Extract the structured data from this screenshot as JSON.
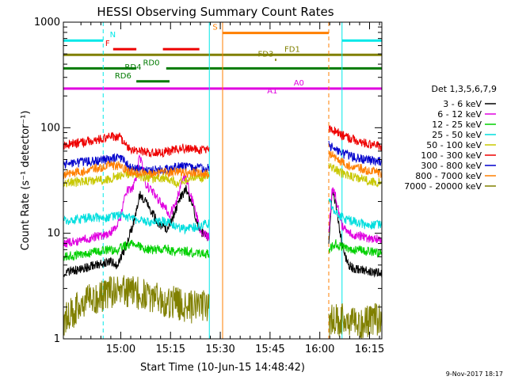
{
  "chart_data": {
    "type": "line",
    "title": "HESSI Observing Summary Count Rates",
    "xlabel": "Start Time (10-Jun-15 14:48:42)",
    "ylabel": "Count Rate (s⁻¹ detector⁻¹)",
    "yscale": "log",
    "ylim": [
      1,
      1000
    ],
    "y_ticks": [
      {
        "v": 1,
        "label": "1"
      },
      {
        "v": 10,
        "label": "10"
      },
      {
        "v": 100,
        "label": "100"
      },
      {
        "v": 1000,
        "label": "1000"
      }
    ],
    "xlim": [
      -6,
      90
    ],
    "x_ticks": [
      {
        "v": 11.3,
        "label": "15:00"
      },
      {
        "v": 26.3,
        "label": "15:15"
      },
      {
        "v": 41.3,
        "label": "15:30"
      },
      {
        "v": 56.3,
        "label": "15:45"
      },
      {
        "v": 71.3,
        "label": "16:00"
      },
      {
        "v": 86.3,
        "label": "16:15"
      }
    ],
    "legend_title": "Det 1,3,5,6,7,9",
    "legend_position": "right",
    "segments": [
      [
        -6,
        38
      ],
      [
        74,
        90
      ]
    ],
    "series": [
      {
        "name": "3 - 6 keV",
        "color": "#000000",
        "day": [
          [
            -6,
            4.2
          ],
          [
            2,
            4.8
          ],
          [
            8,
            5.5
          ],
          [
            10,
            5.0
          ],
          [
            12,
            6.5
          ],
          [
            15,
            12
          ],
          [
            17,
            23
          ],
          [
            19,
            20
          ],
          [
            21,
            15
          ],
          [
            23,
            12
          ],
          [
            25,
            11
          ],
          [
            27,
            14
          ],
          [
            29,
            21
          ],
          [
            31,
            26
          ],
          [
            33,
            18
          ],
          [
            35,
            11
          ],
          [
            36,
            10
          ],
          [
            37,
            9.5
          ],
          [
            38,
            9
          ]
        ],
        "night": [
          [
            74,
            8.5
          ],
          [
            75,
            24
          ],
          [
            76,
            20
          ],
          [
            77,
            12
          ],
          [
            78,
            8
          ],
          [
            79,
            6
          ],
          [
            80,
            5
          ],
          [
            82,
            4.5
          ],
          [
            85,
            4.5
          ],
          [
            88,
            4.3
          ],
          [
            90,
            4.2
          ]
        ]
      },
      {
        "name": "6 - 12 keV",
        "color": "#e000e0",
        "day": [
          [
            -6,
            8
          ],
          [
            2,
            9
          ],
          [
            8,
            10
          ],
          [
            11,
            13
          ],
          [
            13,
            25
          ],
          [
            15,
            27
          ],
          [
            16,
            35
          ],
          [
            17,
            55
          ],
          [
            18,
            40
          ],
          [
            19,
            28
          ],
          [
            21,
            25
          ],
          [
            23,
            20
          ],
          [
            25,
            17
          ],
          [
            26,
            15
          ],
          [
            27,
            17
          ],
          [
            28,
            20
          ],
          [
            29,
            26
          ],
          [
            30,
            32
          ],
          [
            31,
            33
          ],
          [
            32,
            25
          ],
          [
            34,
            16
          ],
          [
            35,
            11
          ],
          [
            36,
            10
          ],
          [
            37,
            9.5
          ],
          [
            38,
            9
          ]
        ],
        "night": [
          [
            74,
            10
          ],
          [
            75,
            26
          ],
          [
            76,
            23
          ],
          [
            77,
            16
          ],
          [
            78,
            12
          ],
          [
            79,
            11
          ],
          [
            80,
            10
          ],
          [
            83,
            9.5
          ],
          [
            86,
            9
          ],
          [
            90,
            8.8
          ]
        ]
      },
      {
        "name": "12 - 25 keV",
        "color": "#00d000",
        "day": [
          [
            -6,
            6
          ],
          [
            2,
            6.5
          ],
          [
            8,
            7
          ],
          [
            10,
            6.8
          ],
          [
            12,
            7.5
          ],
          [
            15,
            8
          ],
          [
            18,
            7.2
          ],
          [
            21,
            7
          ],
          [
            25,
            7.2
          ],
          [
            28,
            6.5
          ],
          [
            31,
            6.8
          ],
          [
            34,
            6.5
          ],
          [
            36,
            6.4
          ],
          [
            38,
            6.5
          ]
        ],
        "night": [
          [
            74,
            7
          ],
          [
            76,
            8
          ],
          [
            78,
            7.5
          ],
          [
            81,
            7
          ],
          [
            85,
            6.8
          ],
          [
            88,
            6.6
          ],
          [
            90,
            6.5
          ]
        ]
      },
      {
        "name": "25 - 50 keV",
        "color": "#00dede",
        "day": [
          [
            -6,
            13
          ],
          [
            2,
            14
          ],
          [
            8,
            14
          ],
          [
            11,
            15
          ],
          [
            14,
            14
          ],
          [
            18,
            13
          ],
          [
            21,
            12.5
          ],
          [
            25,
            13
          ],
          [
            28,
            11.5
          ],
          [
            31,
            11
          ],
          [
            34,
            11.5
          ],
          [
            36,
            12
          ],
          [
            38,
            12.5
          ]
        ],
        "night": [
          [
            74,
            20
          ],
          [
            76,
            16
          ],
          [
            78,
            14
          ],
          [
            81,
            13
          ],
          [
            85,
            12
          ],
          [
            88,
            12
          ],
          [
            90,
            12
          ]
        ]
      },
      {
        "name": "50 - 100 keV",
        "color": "#c8c800",
        "day": [
          [
            -6,
            30
          ],
          [
            2,
            31
          ],
          [
            8,
            33
          ],
          [
            10,
            35
          ],
          [
            12,
            36
          ],
          [
            15,
            37
          ],
          [
            18,
            34
          ],
          [
            21,
            33
          ],
          [
            25,
            34
          ],
          [
            28,
            30
          ],
          [
            31,
            32
          ],
          [
            34,
            33
          ],
          [
            36,
            34
          ],
          [
            38,
            35
          ]
        ],
        "night": [
          [
            74,
            45
          ],
          [
            76,
            40
          ],
          [
            78,
            37
          ],
          [
            81,
            34
          ],
          [
            85,
            32
          ],
          [
            88,
            31
          ],
          [
            90,
            30
          ]
        ]
      },
      {
        "name": "100 - 300 keV",
        "color": "#ee0000",
        "day": [
          [
            -6,
            68
          ],
          [
            2,
            75
          ],
          [
            8,
            82
          ],
          [
            11,
            82
          ],
          [
            14,
            62
          ],
          [
            17,
            60
          ],
          [
            20,
            58
          ],
          [
            23,
            58
          ],
          [
            26,
            60
          ],
          [
            29,
            64
          ],
          [
            32,
            63
          ],
          [
            35,
            62
          ],
          [
            38,
            62
          ]
        ],
        "night": [
          [
            74,
            100
          ],
          [
            76,
            92
          ],
          [
            78,
            85
          ],
          [
            81,
            78
          ],
          [
            85,
            72
          ],
          [
            88,
            68
          ],
          [
            90,
            66
          ]
        ]
      },
      {
        "name": "300 - 800 keV",
        "color": "#0000cc",
        "day": [
          [
            -6,
            45
          ],
          [
            2,
            48
          ],
          [
            8,
            50
          ],
          [
            11,
            52
          ],
          [
            14,
            42
          ],
          [
            17,
            40
          ],
          [
            20,
            39
          ],
          [
            23,
            40
          ],
          [
            26,
            41
          ],
          [
            29,
            43
          ],
          [
            32,
            42
          ],
          [
            35,
            41
          ],
          [
            38,
            41
          ]
        ],
        "night": [
          [
            74,
            68
          ],
          [
            76,
            62
          ],
          [
            78,
            57
          ],
          [
            81,
            53
          ],
          [
            85,
            50
          ],
          [
            88,
            48
          ],
          [
            90,
            47
          ]
        ]
      },
      {
        "name": "800 - 7000 keV",
        "color": "#ff7f00",
        "day": [
          [
            -6,
            36
          ],
          [
            2,
            40
          ],
          [
            8,
            44
          ],
          [
            11,
            44
          ],
          [
            14,
            38
          ],
          [
            17,
            37
          ],
          [
            20,
            36
          ],
          [
            23,
            37
          ],
          [
            26,
            38
          ],
          [
            29,
            38
          ],
          [
            32,
            37
          ],
          [
            35,
            37
          ],
          [
            38,
            36
          ]
        ],
        "night": [
          [
            74,
            58
          ],
          [
            76,
            52
          ],
          [
            78,
            47
          ],
          [
            81,
            43
          ],
          [
            85,
            40
          ],
          [
            88,
            38
          ],
          [
            90,
            37
          ]
        ]
      },
      {
        "name": "7000 - 20000 keV",
        "color": "#808000",
        "day": [
          [
            -6,
            1.5
          ],
          [
            2,
            2.4
          ],
          [
            6,
            2.6
          ],
          [
            10,
            2.8
          ],
          [
            13,
            2.9
          ],
          [
            17,
            2.7
          ],
          [
            20,
            2.5
          ],
          [
            24,
            2.3
          ],
          [
            28,
            2.2
          ],
          [
            32,
            2.0
          ],
          [
            36,
            2.0
          ],
          [
            38,
            2.0
          ]
        ],
        "night": [
          [
            74,
            1.5
          ],
          [
            78,
            1.5
          ],
          [
            82,
            1.4
          ],
          [
            86,
            1.5
          ],
          [
            90,
            1.5
          ]
        ]
      }
    ],
    "bars": [
      {
        "label": "N",
        "color": "#00e8e8",
        "y": 670,
        "segs": [
          [
            -6,
            6
          ],
          [
            78,
            90
          ]
        ],
        "label_x": 8,
        "label_side": "right"
      },
      {
        "label": "F",
        "color": "#ee0000",
        "y": 555,
        "segs": [
          [
            9,
            16
          ],
          [
            24,
            35
          ]
        ],
        "label_x": 8,
        "label_side": "left"
      },
      {
        "label": "S",
        "color": "#ff7f00",
        "y": 790,
        "segs": [
          [
            42,
            74
          ]
        ],
        "label_x": 40.5,
        "label_side": "left"
      },
      {
        "label": "FD1",
        "color": "#808000",
        "y": 490,
        "segs": [
          [
            -6,
            90
          ]
        ],
        "label_x": 63,
        "label_side": "center"
      },
      {
        "label": "FD3",
        "color": "#808000",
        "y": 440,
        "segs": [
          [
            57.8,
            58.2
          ]
        ],
        "label_x": 55,
        "label_side": "center"
      },
      {
        "label": "RD0",
        "color": "#007a00",
        "y": 365,
        "segs": [
          [
            -6,
            16
          ],
          [
            25,
            90
          ]
        ],
        "label_x": 20.5,
        "label_side": "center"
      },
      {
        "label": "RD4",
        "color": "#007a00",
        "y": 330,
        "segs": [],
        "label_x": 15,
        "label_side": "center"
      },
      {
        "label": "RD6",
        "color": "#007a00",
        "y": 275,
        "segs": [
          [
            16,
            26
          ]
        ],
        "label_x": 12,
        "label_side": "center"
      },
      {
        "label": "A0",
        "color": "#e000e0",
        "y": 235,
        "segs": [
          [
            -6,
            90
          ]
        ],
        "label_x": 65,
        "label_side": "center"
      },
      {
        "label": "A1",
        "color": "#e000e0",
        "y": 198,
        "segs": [],
        "label_x": 57,
        "label_side": "center"
      }
    ],
    "vlines": [
      {
        "x": -6,
        "color": "#00e8e8",
        "dash": false
      },
      {
        "x": 6,
        "color": "#00e8e8",
        "dash": true
      },
      {
        "x": 38,
        "color": "#00e8e8",
        "dash": false
      },
      {
        "x": 42,
        "color": "#ff7f00",
        "dash": false
      },
      {
        "x": 74,
        "color": "#ff7f00",
        "dash": true
      },
      {
        "x": 78,
        "color": "#00e8e8",
        "dash": false
      },
      {
        "x": 90,
        "color": "#00e8e8",
        "dash": true
      }
    ]
  },
  "footer": {
    "stamp": "9-Nov-2017 18:17"
  }
}
